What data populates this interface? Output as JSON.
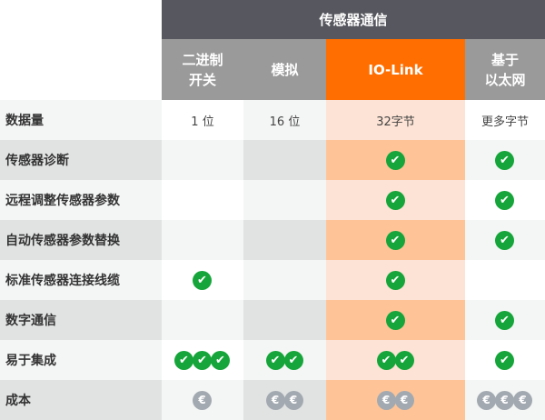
{
  "header": {
    "title": "传感器通信"
  },
  "columns": [
    {
      "label": "二进制\n开关"
    },
    {
      "label": "模拟"
    },
    {
      "label": "IO-Link",
      "highlight": true
    },
    {
      "label": "基于\n以太网"
    }
  ],
  "colors": {
    "header": "#57575f",
    "subheader": "#9a9a9a",
    "accent": "#ff6e00",
    "check": "#16a53a",
    "euro": "#a2a9b0"
  },
  "rows": [
    {
      "label": "数据量",
      "cells": [
        {
          "text": "1 位"
        },
        {
          "text": "16 位"
        },
        {
          "text": "32字节"
        },
        {
          "text": "更多字节"
        }
      ]
    },
    {
      "label": "传感器诊断",
      "cells": [
        {
          "checks": 0
        },
        {
          "checks": 0
        },
        {
          "checks": 1
        },
        {
          "checks": 1
        }
      ]
    },
    {
      "label": "远程调整传感器参数",
      "cells": [
        {
          "checks": 0
        },
        {
          "checks": 0
        },
        {
          "checks": 1
        },
        {
          "checks": 1
        }
      ]
    },
    {
      "label": "自动传感器参数替换",
      "cells": [
        {
          "checks": 0
        },
        {
          "checks": 0
        },
        {
          "checks": 1
        },
        {
          "checks": 1
        }
      ]
    },
    {
      "label": "标准传感器连接线缆",
      "cells": [
        {
          "checks": 1
        },
        {
          "checks": 0
        },
        {
          "checks": 1
        },
        {
          "checks": 0
        }
      ]
    },
    {
      "label": "数字通信",
      "cells": [
        {
          "checks": 0
        },
        {
          "checks": 0
        },
        {
          "checks": 1
        },
        {
          "checks": 1
        }
      ]
    },
    {
      "label": "易于集成",
      "cells": [
        {
          "checks": 3
        },
        {
          "checks": 2
        },
        {
          "checks": 2
        },
        {
          "checks": 1
        }
      ]
    },
    {
      "label": "成本",
      "cells": [
        {
          "euros": 1
        },
        {
          "euros": 2
        },
        {
          "euros": 2
        },
        {
          "euros": 3
        }
      ]
    }
  ],
  "icons": {
    "check": "check-circle-icon",
    "euro": "euro-coin-icon"
  }
}
